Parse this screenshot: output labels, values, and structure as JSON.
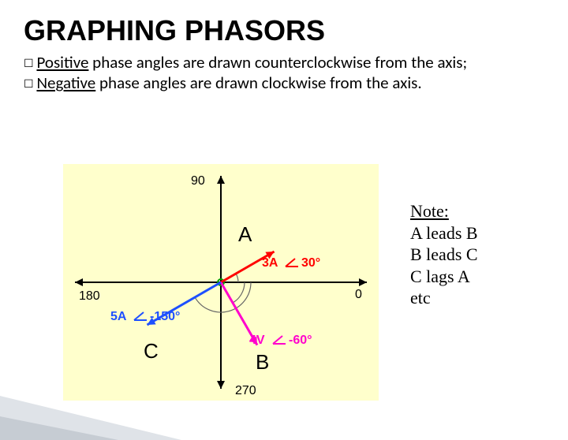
{
  "title": "GRAPHING PHASORS",
  "bullets": {
    "pos_key": "Positive",
    "pos_rest": " phase angles are drawn counterclockwise from the axis;",
    "neg_key": "Negative",
    "neg_rest": " phase angles are drawn clockwise from the axis."
  },
  "note": {
    "heading": "Note:",
    "line1": "A leads B",
    "line2": "B leads C",
    "line3": "C lags A",
    "line4": "etc"
  },
  "diagram": {
    "background": "#ffffcc",
    "axis_color": "#000000",
    "ticks_90": "90",
    "ticks_0": "0",
    "ticks_180": "180",
    "ticks_270": "270",
    "phasors": {
      "A": {
        "label": "A",
        "mag_label": "3A",
        "angle_label": "30°",
        "angle_deg": 30,
        "length": 78,
        "color": "#ff0000"
      },
      "B": {
        "label": "B",
        "mag_label": "4V",
        "angle_label": "-60°",
        "angle_deg": -60,
        "length": 92,
        "color": "#ff00cc"
      },
      "C": {
        "label": "C",
        "mag_label": "5A",
        "angle_label": "-150°",
        "angle_deg": -150,
        "length": 108,
        "color": "#1e50ff"
      }
    },
    "angle_symbol_color": "#ff0000",
    "origin_marker_color": "#00a000"
  }
}
